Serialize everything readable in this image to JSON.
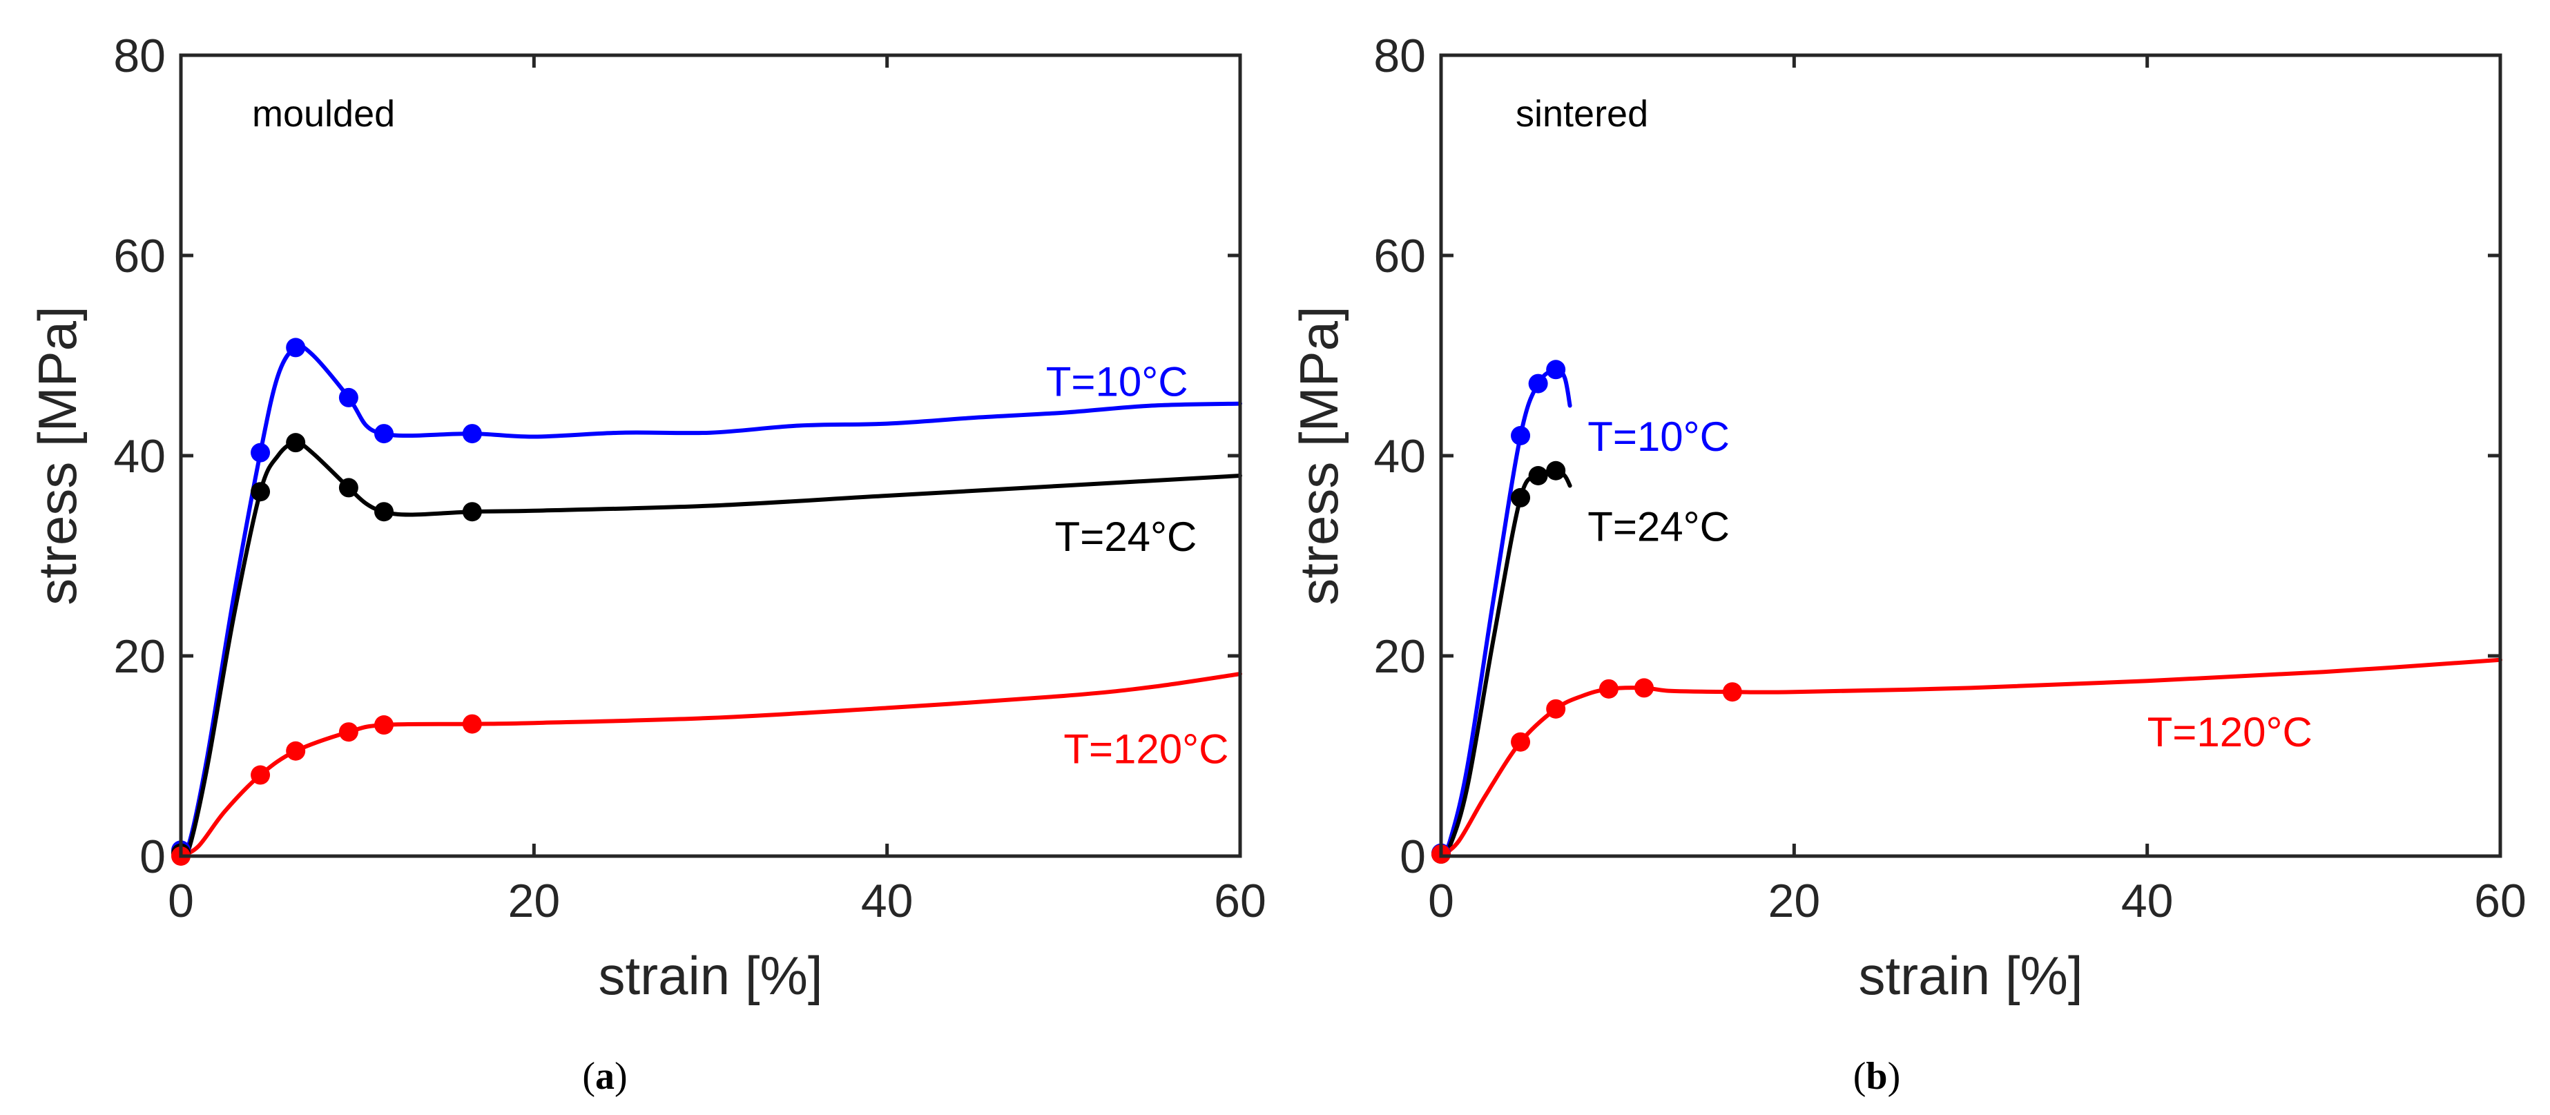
{
  "chart_data": [
    {
      "type": "line",
      "panel_label": "moulded",
      "caption": "(a)",
      "xlabel": "strain [%]",
      "ylabel": "stress [MPa]",
      "xlim": [
        0,
        60
      ],
      "ylim": [
        0,
        80
      ],
      "xticks": [
        "0",
        "20",
        "40",
        "60"
      ],
      "yticks": [
        "0",
        "20",
        "40",
        "60",
        "80"
      ],
      "grid": false,
      "series": [
        {
          "name": "T=10°C",
          "color": "#0000ff",
          "curve": [
            [
              0,
              0.5
            ],
            [
              0.5,
              1.5
            ],
            [
              1.5,
              10
            ],
            [
              3,
              26
            ],
            [
              4.5,
              40.3
            ],
            [
              5.5,
              48
            ],
            [
              6.5,
              50.8
            ],
            [
              7.5,
              50
            ],
            [
              9.5,
              45.8
            ],
            [
              10.5,
              43
            ],
            [
              11.5,
              42.2
            ],
            [
              13,
              42
            ],
            [
              16.5,
              42.2
            ],
            [
              20,
              41.9
            ],
            [
              25,
              42.3
            ],
            [
              30,
              42.3
            ],
            [
              35,
              43
            ],
            [
              40,
              43.2
            ],
            [
              45,
              43.8
            ],
            [
              50,
              44.3
            ],
            [
              55,
              45
            ],
            [
              60,
              45.2
            ]
          ],
          "markers": [
            [
              0,
              0.6
            ],
            [
              4.5,
              40.3
            ],
            [
              6.5,
              50.8
            ],
            [
              9.5,
              45.8
            ],
            [
              11.5,
              42.2
            ],
            [
              16.5,
              42.2
            ]
          ],
          "label_at": [
            49,
            47.5
          ]
        },
        {
          "name": "T=24°C",
          "color": "#000000",
          "curve": [
            [
              0,
              0
            ],
            [
              0.5,
              1
            ],
            [
              1.5,
              9
            ],
            [
              3,
              24
            ],
            [
              4.5,
              36.4
            ],
            [
              5.5,
              40
            ],
            [
              6.5,
              41.3
            ],
            [
              7.5,
              40.2
            ],
            [
              9.5,
              36.8
            ],
            [
              10.5,
              35.2
            ],
            [
              11.5,
              34.4
            ],
            [
              13,
              34.1
            ],
            [
              16.5,
              34.4
            ],
            [
              20,
              34.5
            ],
            [
              30,
              35
            ],
            [
              40,
              36
            ],
            [
              50,
              37
            ],
            [
              60,
              38
            ]
          ],
          "markers": [
            [
              0,
              0.3
            ],
            [
              4.5,
              36.4
            ],
            [
              6.5,
              41.3
            ],
            [
              9.5,
              36.8
            ],
            [
              11.5,
              34.4
            ],
            [
              16.5,
              34.4
            ]
          ],
          "label_at": [
            49.5,
            32
          ]
        },
        {
          "name": "T=120°C",
          "color": "#ff0000",
          "curve": [
            [
              0,
              0
            ],
            [
              1,
              1
            ],
            [
              2.5,
              4.5
            ],
            [
              4.5,
              8.1
            ],
            [
              6.5,
              10.5
            ],
            [
              9.5,
              12.4
            ],
            [
              11.5,
              13.1
            ],
            [
              16.5,
              13.2
            ],
            [
              20,
              13.3
            ],
            [
              30,
              13.8
            ],
            [
              40,
              14.8
            ],
            [
              50,
              16
            ],
            [
              55,
              16.9
            ],
            [
              60,
              18.2
            ]
          ],
          "markers": [
            [
              0,
              0
            ],
            [
              4.5,
              8.1
            ],
            [
              6.5,
              10.5
            ],
            [
              9.5,
              12.4
            ],
            [
              11.5,
              13.1
            ],
            [
              16.5,
              13.2
            ]
          ],
          "label_at": [
            50,
            10.8
          ]
        }
      ]
    },
    {
      "type": "line",
      "panel_label": "sintered",
      "caption": "(b)",
      "xlabel": "strain [%]",
      "ylabel": "stress [MPa]",
      "xlim": [
        0,
        60
      ],
      "ylim": [
        0,
        80
      ],
      "xticks": [
        "0",
        "20",
        "40",
        "60"
      ],
      "yticks": [
        "0",
        "20",
        "40",
        "60",
        "80"
      ],
      "grid": false,
      "series": [
        {
          "name": "T=10°C",
          "color": "#0000ff",
          "curve": [
            [
              0,
              0
            ],
            [
              0.5,
              1.5
            ],
            [
              1.5,
              9
            ],
            [
              3,
              26
            ],
            [
              4.5,
              42
            ],
            [
              5.5,
              47.2
            ],
            [
              6.5,
              48.6
            ],
            [
              7,
              47.8
            ],
            [
              7.3,
              45
            ]
          ],
          "markers": [
            [
              0,
              0.3
            ],
            [
              4.5,
              42
            ],
            [
              5.5,
              47.2
            ],
            [
              6.5,
              48.6
            ]
          ],
          "label_at": [
            8.3,
            42
          ]
        },
        {
          "name": "T=24°C",
          "color": "#000000",
          "curve": [
            [
              0,
              0
            ],
            [
              0.5,
              1
            ],
            [
              1.5,
              7
            ],
            [
              3,
              22
            ],
            [
              4.5,
              35.8
            ],
            [
              5.5,
              38
            ],
            [
              6.5,
              38.5
            ],
            [
              7,
              38
            ],
            [
              7.3,
              37
            ]
          ],
          "markers": [
            [
              0,
              0.2
            ],
            [
              4.5,
              35.8
            ],
            [
              5.5,
              38
            ],
            [
              6.5,
              38.5
            ]
          ],
          "label_at": [
            8.3,
            33
          ]
        },
        {
          "name": "T=120°C",
          "color": "#ff0000",
          "curve": [
            [
              0,
              0
            ],
            [
              1,
              1.5
            ],
            [
              2.5,
              6
            ],
            [
              4.5,
              11.4
            ],
            [
              6.5,
              14.7
            ],
            [
              8,
              16
            ],
            [
              9.5,
              16.7
            ],
            [
              11.5,
              16.8
            ],
            [
              13,
              16.5
            ],
            [
              16.5,
              16.4
            ],
            [
              20,
              16.4
            ],
            [
              30,
              16.8
            ],
            [
              40,
              17.5
            ],
            [
              50,
              18.4
            ],
            [
              60,
              19.6
            ]
          ],
          "markers": [
            [
              0,
              0.2
            ],
            [
              4.5,
              11.4
            ],
            [
              6.5,
              14.7
            ],
            [
              9.5,
              16.7
            ],
            [
              11.5,
              16.8
            ],
            [
              16.5,
              16.4
            ]
          ],
          "label_at": [
            40,
            12.5
          ]
        }
      ]
    }
  ]
}
